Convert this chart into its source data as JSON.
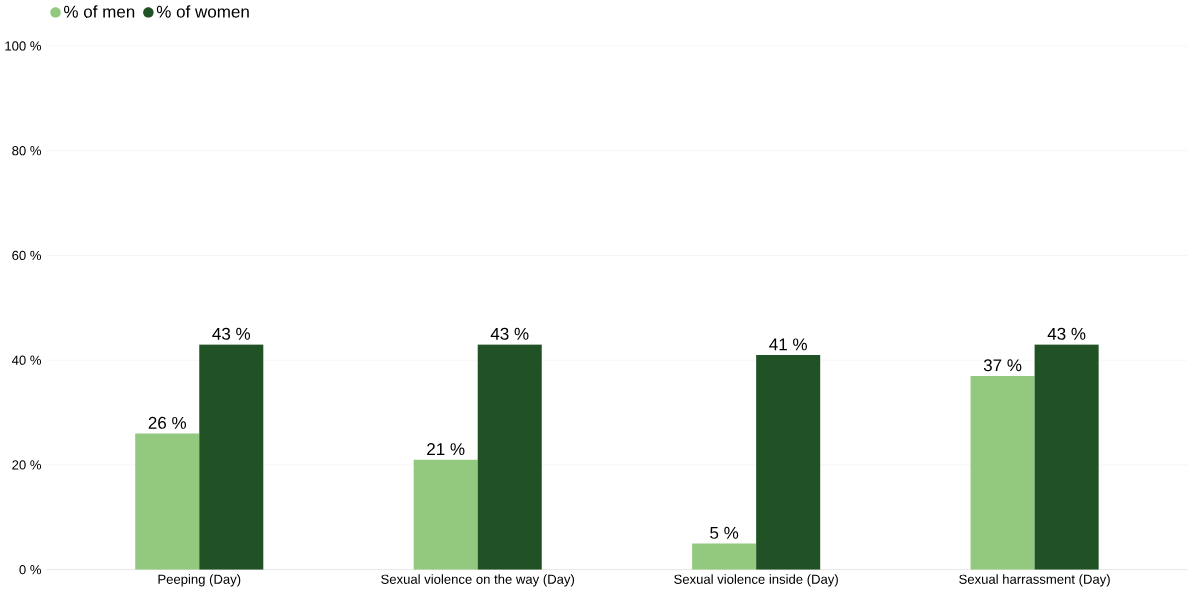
{
  "chart_data": {
    "type": "bar",
    "categories": [
      "Peeping (Day)",
      "Sexual violence on the way (Day)",
      "Sexual violence inside (Day)",
      "Sexual harrassment (Day)"
    ],
    "series": [
      {
        "name": "% of men",
        "color": "#92c97f",
        "values": [
          26,
          21,
          5,
          37
        ],
        "value_labels": [
          "26 %",
          "21 %",
          "5 %",
          "37 %"
        ]
      },
      {
        "name": "% of women",
        "color": "#215225",
        "values": [
          43,
          43,
          41,
          43
        ],
        "value_labels": [
          "43 %",
          "43 %",
          "41 %",
          "43 %"
        ]
      }
    ],
    "ylim": [
      0,
      100
    ],
    "yticks": [
      {
        "value": 0,
        "label": "0 %"
      },
      {
        "value": 20,
        "label": "20 %"
      },
      {
        "value": 40,
        "label": "40 %"
      },
      {
        "value": 60,
        "label": "60 %"
      },
      {
        "value": 80,
        "label": "80 %"
      },
      {
        "value": 100,
        "label": "100 %"
      }
    ],
    "grid": "y",
    "legend": "top left"
  }
}
